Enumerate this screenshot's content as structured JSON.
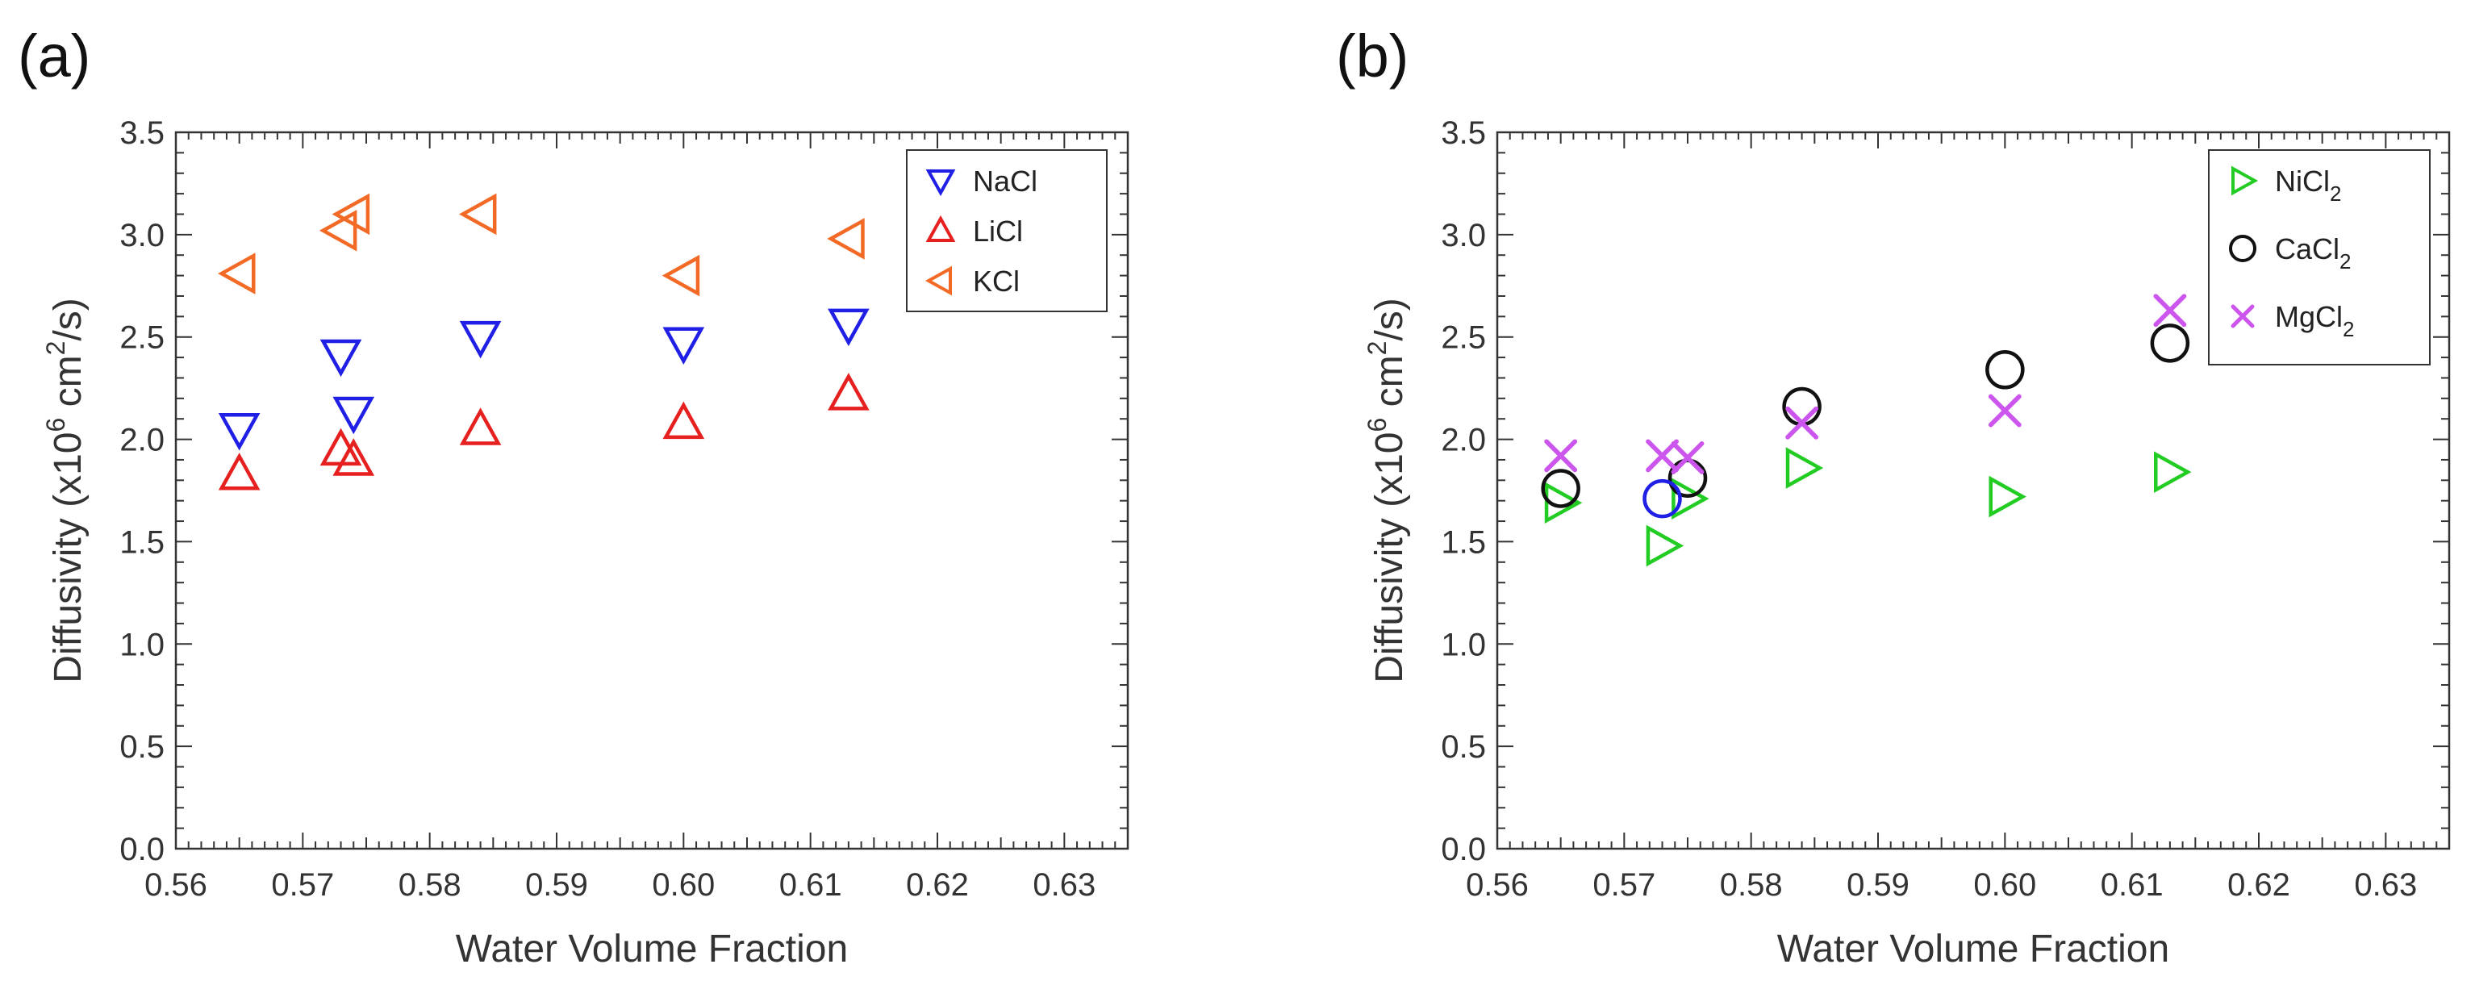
{
  "chart_data": [
    {
      "panel_label": "(a)",
      "type": "scatter",
      "xlabel": "Water Volume Fraction",
      "ylabel": {
        "prefix": "Diffusivity (x10",
        "sup1": "6",
        "middle": " cm",
        "sup2": "2",
        "suffix": "/s)"
      },
      "xlim": [
        0.56,
        0.635
      ],
      "ylim": [
        0,
        3.5
      ],
      "xticks": [
        "0.56",
        "0.57",
        "0.58",
        "0.59",
        "0.60",
        "0.61",
        "0.62",
        "0.63"
      ],
      "yticks": [
        "0.0",
        "0.5",
        "1.0",
        "1.5",
        "2.0",
        "2.5",
        "3.0",
        "3.5"
      ],
      "legend_position": "top-right",
      "series": [
        {
          "name": "NaCl",
          "sub": "",
          "marker": "triangle-down",
          "color": "#1f1fe6",
          "x": [
            0.565,
            0.573,
            0.574,
            0.584,
            0.6,
            0.613
          ],
          "y": [
            2.05,
            2.41,
            2.13,
            2.5,
            2.47,
            2.56
          ]
        },
        {
          "name": "LiCl",
          "sub": "",
          "marker": "triangle-up",
          "color": "#e61f1f",
          "x": [
            0.565,
            0.573,
            0.574,
            0.584,
            0.6,
            0.613
          ],
          "y": [
            1.83,
            1.95,
            1.9,
            2.05,
            2.08,
            2.22
          ]
        },
        {
          "name": "KCl",
          "sub": "",
          "marker": "triangle-left",
          "color": "#f26a25",
          "x": [
            0.565,
            0.573,
            0.574,
            0.584,
            0.6,
            0.613
          ],
          "y": [
            2.81,
            3.02,
            3.1,
            3.1,
            2.8,
            2.98
          ]
        }
      ]
    },
    {
      "panel_label": "(b)",
      "type": "scatter",
      "xlabel": "Water Volume Fraction",
      "ylabel": {
        "prefix": "Diffusivity (x10",
        "sup1": "6",
        "middle": " cm",
        "sup2": "2",
        "suffix": "/s)"
      },
      "xlim": [
        0.56,
        0.635
      ],
      "ylim": [
        0,
        3.5
      ],
      "xticks": [
        "0.56",
        "0.57",
        "0.58",
        "0.59",
        "0.60",
        "0.61",
        "0.62",
        "0.63"
      ],
      "yticks": [
        "0.0",
        "0.5",
        "1.0",
        "1.5",
        "2.0",
        "2.5",
        "3.0",
        "3.5"
      ],
      "legend_position": "top-right",
      "series": [
        {
          "name": "NiCl",
          "sub": "2",
          "marker": "triangle-right",
          "color": "#22cc22",
          "x": [
            0.565,
            0.573,
            0.575,
            0.584,
            0.6,
            0.613
          ],
          "y": [
            1.69,
            1.48,
            1.71,
            1.86,
            1.72,
            1.84
          ]
        },
        {
          "name": "CaCl",
          "sub": "2",
          "marker": "circle",
          "color": "#111111",
          "x": [
            0.565,
            0.575,
            0.584,
            0.6,
            0.613
          ],
          "y": [
            1.76,
            1.81,
            2.16,
            2.34,
            2.47
          ]
        },
        {
          "name": "MgCl",
          "sub": "2",
          "marker": "x",
          "color": "#cc55ee",
          "x": [
            0.565,
            0.573,
            0.575,
            0.584,
            0.6,
            0.613
          ],
          "y": [
            1.92,
            1.92,
            1.91,
            2.08,
            2.14,
            2.63
          ]
        }
      ],
      "extra_points": [
        {
          "marker": "circle",
          "color": "#1f1fe6",
          "x": 0.573,
          "y": 1.71
        }
      ]
    }
  ]
}
